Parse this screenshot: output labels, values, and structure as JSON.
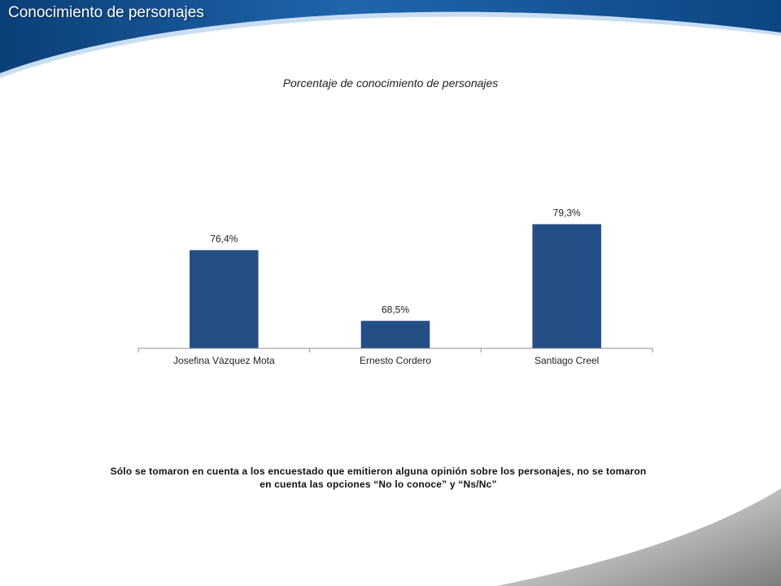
{
  "slide": {
    "title": "Conocimiento de personajes"
  },
  "colors": {
    "header_dark": "#0d4a86",
    "header_light": "#2f7cc2",
    "bar": "#244f86",
    "bottom_swoosh": "#8a8a8a"
  },
  "chart_data": {
    "type": "bar",
    "title": "Porcentaje de conocimiento de personajes",
    "categories": [
      "Josefina Vázquez Mota",
      "Ernesto Cordero",
      "Santiago Creel"
    ],
    "values": [
      76.4,
      68.5,
      79.3
    ],
    "data_labels": [
      "76,4%",
      "68,5%",
      "79,3%"
    ],
    "xlabel": "",
    "ylabel": "",
    "ylim": [
      0,
      100
    ],
    "grid": false,
    "legend": "none"
  },
  "note": {
    "line1": "Sólo se tomaron en cuenta a los encuestado  que emitieron alguna opinión sobre los personajes, no se tomaron",
    "line2": "en cuenta las opciones “No lo conoce” y “Ns/Nc”"
  }
}
